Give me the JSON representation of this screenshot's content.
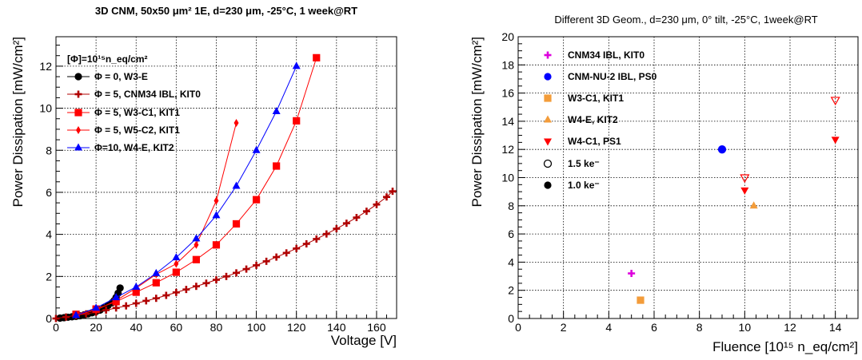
{
  "colors": {
    "black": "#000000",
    "darkred": "#b00000",
    "red": "#ff0000",
    "blue": "#0000ff",
    "magenta": "#dd00dd",
    "orange": "#f39c3a"
  },
  "chart_data": [
    {
      "type": "line",
      "title": "3D CNM, 50x50 μm² 1E, d=230 μm, -25°C, 1 week@RT",
      "xlabel": "Voltage [V]",
      "ylabel": "Power Dissipation [mW/cm²]",
      "xlim": [
        0,
        170
      ],
      "ylim": [
        0,
        13.4
      ],
      "xticks": [
        0,
        20,
        40,
        60,
        80,
        100,
        120,
        140,
        160
      ],
      "yticks": [
        0,
        2,
        4,
        6,
        8,
        10,
        12
      ],
      "grid": true,
      "legend_position": "top-left",
      "legend_header": "[Φ]=10¹⁵n_eq/cm²",
      "series": [
        {
          "name": "Φ = 0, W3-E",
          "color": "#000000",
          "marker": "circle",
          "x": [
            2,
            4,
            6,
            8,
            10,
            12,
            14,
            16,
            18,
            20,
            22,
            24,
            26,
            28,
            29,
            30,
            31,
            32
          ],
          "y": [
            0.02,
            0.04,
            0.06,
            0.08,
            0.1,
            0.13,
            0.17,
            0.22,
            0.27,
            0.33,
            0.4,
            0.5,
            0.62,
            0.75,
            0.85,
            1.0,
            1.2,
            1.45
          ]
        },
        {
          "name": "Φ = 5, CNM34 IBL, KIT0",
          "color": "#b00000",
          "marker": "plus",
          "x": [
            0,
            5,
            10,
            15,
            20,
            25,
            30,
            35,
            40,
            45,
            50,
            55,
            60,
            65,
            70,
            75,
            80,
            85,
            90,
            95,
            100,
            105,
            110,
            115,
            120,
            125,
            130,
            135,
            140,
            145,
            150,
            155,
            160,
            165,
            168
          ],
          "y": [
            0.0,
            0.07,
            0.15,
            0.22,
            0.3,
            0.4,
            0.5,
            0.6,
            0.72,
            0.84,
            0.96,
            1.1,
            1.24,
            1.38,
            1.53,
            1.68,
            1.84,
            2.0,
            2.17,
            2.35,
            2.53,
            2.72,
            2.92,
            3.12,
            3.33,
            3.55,
            3.78,
            4.02,
            4.27,
            4.53,
            4.8,
            5.1,
            5.42,
            5.78,
            6.05
          ]
        },
        {
          "name": "Φ = 5, W3-C1, KIT1",
          "color": "#ff0000",
          "marker": "square",
          "x": [
            10,
            20,
            30,
            40,
            50,
            60,
            70,
            80,
            90,
            100,
            110,
            120,
            130
          ],
          "y": [
            0.2,
            0.45,
            0.8,
            1.25,
            1.7,
            2.2,
            2.8,
            3.5,
            4.5,
            5.65,
            7.25,
            9.4,
            12.4
          ]
        },
        {
          "name": "Φ = 5, W5-C2, KIT1",
          "color": "#ff0000",
          "marker": "diamond",
          "x": [
            10,
            20,
            30,
            40,
            50,
            60,
            70,
            80,
            90
          ],
          "y": [
            0.15,
            0.4,
            0.85,
            1.45,
            2.1,
            2.6,
            3.5,
            5.6,
            9.3
          ]
        },
        {
          "name": "Φ=10, W4-E,   KIT2",
          "color": "#0000ff",
          "marker": "triangle",
          "x": [
            10,
            20,
            30,
            40,
            50,
            60,
            70,
            80,
            90,
            100,
            110,
            120
          ],
          "y": [
            0.15,
            0.5,
            1.0,
            1.5,
            2.15,
            2.9,
            3.8,
            4.9,
            6.3,
            8.0,
            9.85,
            12.0
          ]
        }
      ]
    },
    {
      "type": "scatter",
      "title": "Different 3D Geom., d=230 μm, 0° tilt, -25°C, 1week@RT",
      "xlabel": "Fluence [10¹⁵ n_eq/cm²]",
      "ylabel": "Power Dissipation [mW/cm²]",
      "xlim": [
        0,
        15
      ],
      "ylim": [
        0,
        20
      ],
      "xticks": [
        0,
        2,
        4,
        6,
        8,
        10,
        12,
        14
      ],
      "yticks": [
        0,
        2,
        4,
        6,
        8,
        10,
        12,
        14,
        16,
        18,
        20
      ],
      "grid": true,
      "legend_position": "top-left",
      "series": [
        {
          "name": "CNM34        IBL, KIT0",
          "color": "#dd00dd",
          "marker": "plus",
          "x": [
            5.0
          ],
          "y": [
            3.2
          ]
        },
        {
          "name": "CNM-NU-2 IBL, PS0",
          "color": "#0000ff",
          "marker": "circle",
          "x": [
            9.0
          ],
          "y": [
            12.0
          ]
        },
        {
          "name": "W3-C1, KIT1",
          "color": "#f39c3a",
          "marker": "square",
          "x": [
            5.4
          ],
          "y": [
            1.3
          ]
        },
        {
          "name": "W4-E,   KIT2",
          "color": "#f39c3a",
          "marker": "triangle-up",
          "x": [
            10.4
          ],
          "y": [
            8.0
          ]
        },
        {
          "name": "W4-C1, PS1",
          "color": "#ff0000",
          "marker": "triangle-down",
          "x": [
            10.0,
            14.0
          ],
          "y": [
            9.1,
            12.7
          ]
        },
        {
          "name": "1.5 ke⁻",
          "color": "#000000",
          "marker": "open-circle"
        },
        {
          "name": "1.0 ke⁻",
          "color": "#000000",
          "marker": "filled-circle"
        }
      ],
      "open_markers": [
        {
          "series": "CNM-NU-2 IBL, PS0",
          "x": 9.0,
          "y": 12.0,
          "color": "#0000ff",
          "marker": "open-circle"
        },
        {
          "series": "W4-C1, PS1",
          "x": 10.0,
          "y": 10.0,
          "color": "#ff0000",
          "marker": "open-triangle-down"
        },
        {
          "series": "W4-C1, PS1",
          "x": 14.0,
          "y": 15.5,
          "color": "#ff0000",
          "marker": "open-triangle-down"
        }
      ]
    }
  ]
}
